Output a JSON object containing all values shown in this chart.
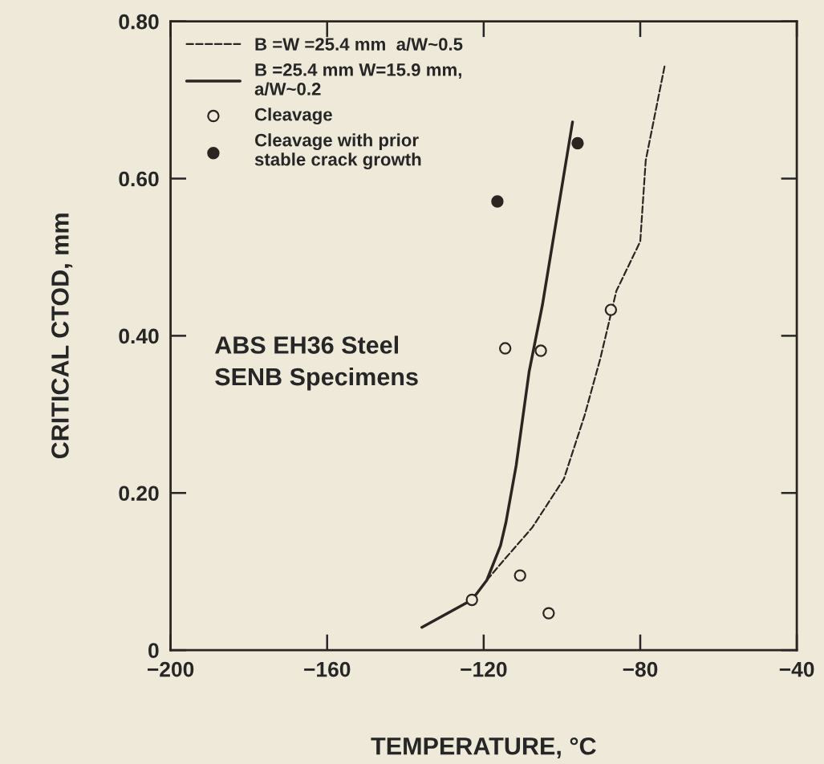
{
  "chart_data": {
    "type": "line",
    "xlabel": "TEMPERATURE, °C",
    "ylabel": "CRITICAL CTOD, mm",
    "xlim": [
      -200,
      -40
    ],
    "xticks": [
      -200,
      -160,
      -120,
      -80,
      -40
    ],
    "ylim": [
      0,
      0.8
    ],
    "yticks": [
      {
        "value": 0,
        "label": "0"
      },
      {
        "value": 0.2,
        "label": "0.20"
      },
      {
        "value": 0.4,
        "label": "0.40"
      },
      {
        "value": 0.6,
        "label": "0.60"
      },
      {
        "value": 0.8,
        "label": "0.80"
      }
    ],
    "grid": false,
    "legend": "top left",
    "series": [
      {
        "name": "B =W =25.4 mm  a/W~0.5",
        "line_style": "dashed",
        "color": "#2b2522",
        "x": [
          -119.2,
          -116.5,
          -107.6,
          -99.5,
          -94.2,
          -90.2,
          -86.1,
          -80,
          -78.6,
          -73.7
        ],
        "values": [
          0.089,
          0.105,
          0.156,
          0.218,
          0.299,
          0.371,
          0.457,
          0.52,
          0.623,
          0.745
        ]
      },
      {
        "name": "B =25.4 mm W=15.9 mm,\na/W~0.2",
        "line_style": "solid",
        "color": "#2b2522",
        "x": [
          -135.8,
          -123,
          -119.2,
          -115.7,
          -114.3,
          -111.7,
          -108.4,
          -105,
          -97.3
        ],
        "values": [
          0.029,
          0.064,
          0.089,
          0.133,
          0.163,
          0.235,
          0.354,
          0.439,
          0.672
        ]
      },
      {
        "name": "Cleavage",
        "type": "scatter",
        "marker": "circle",
        "color": "#2b2522",
        "colors": [
          "#efe9da",
          "#efe9da",
          "#efe9da",
          "#efe9da",
          "#efe9da",
          "#efe9da"
        ],
        "x": [
          -114.5,
          -105.4,
          -87.5,
          -110.7,
          -123,
          -103.4
        ],
        "values": [
          0.384,
          0.381,
          0.433,
          0.095,
          0.064,
          0.047
        ]
      },
      {
        "name": "Cleavage with prior\nstable crack growth",
        "type": "scatter",
        "marker": "circle",
        "color": "#2b2522",
        "x": [
          -116.5,
          -96.0
        ],
        "values": [
          0.571,
          0.645
        ]
      }
    ],
    "annotations": [
      "ABS EH36 Steel\nSENB Specimens"
    ]
  }
}
